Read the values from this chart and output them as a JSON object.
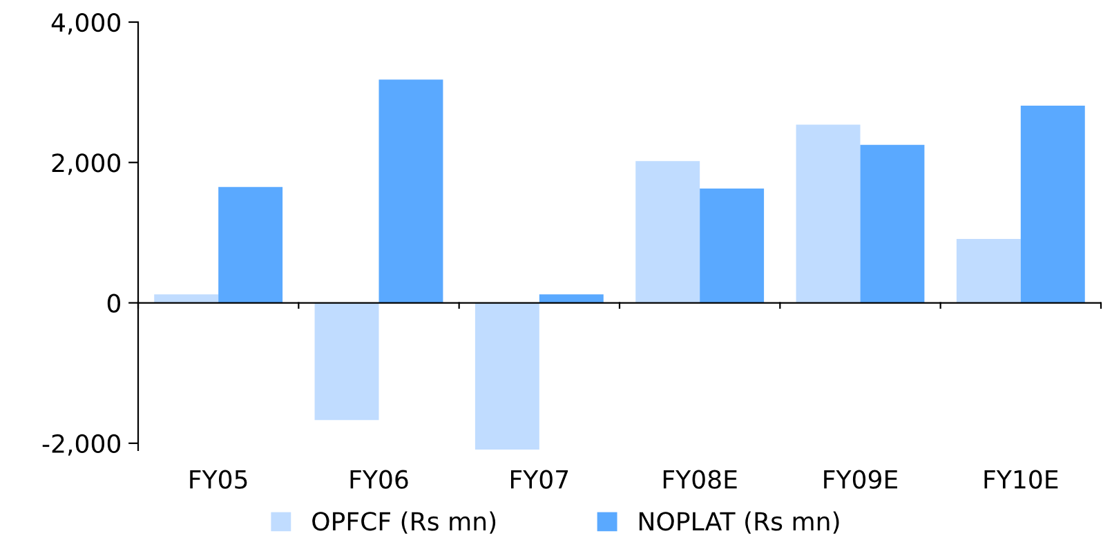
{
  "chart_data": {
    "type": "bar",
    "categories": [
      "FY05",
      "FY06",
      "FY07",
      "FY08E",
      "FY09E",
      "FY10E"
    ],
    "series": [
      {
        "name": "OPFCF (Rs mn)",
        "color": "#c0dcff",
        "values": [
          120,
          -1670,
          -2090,
          2020,
          2540,
          910
        ]
      },
      {
        "name": "NOPLAT (Rs mn)",
        "color": "#5aa9ff",
        "values": [
          1650,
          3180,
          120,
          1630,
          2250,
          2810
        ]
      }
    ],
    "ylim": [
      -2100,
      4000
    ],
    "yticks": [
      {
        "value": -2000,
        "label": "-2,000"
      },
      0,
      {
        "value": 2000,
        "label": "2,000"
      },
      {
        "value": 4000,
        "label": "4,000"
      }
    ],
    "grid": false,
    "ref_lines": [
      {
        "axis": "y",
        "value": 0,
        "color": "#000000"
      }
    ],
    "legend": "bottom"
  }
}
